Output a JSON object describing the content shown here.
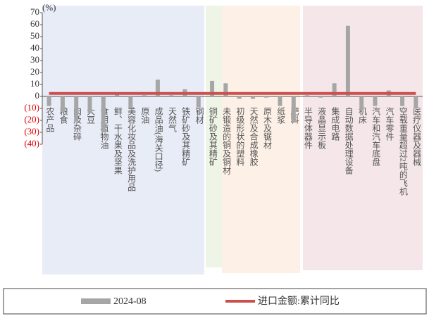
{
  "chart_data": {
    "type": "bar_line",
    "y_unit": "(%)",
    "categories": [
      "农产品",
      "粮食",
      "肉及杂碎",
      "大豆",
      "食用植物油",
      "鲜、干水果及坚果",
      "美容化妆品及洗护用品",
      "原油",
      "成品油(海关口径)",
      "天然气",
      "铁矿砂及其精矿",
      "钢材",
      "铜矿砂及其精矿",
      "未锻造的铜及铜材",
      "初级形状的塑料",
      "天然及合成橡胶",
      "原木及锯材",
      "纸浆",
      "肥料",
      "半导体器件",
      "液晶显示板",
      "集成电路",
      "自动数据处理设备",
      "机床",
      "汽车和汽车底盘",
      "汽车零件",
      "空载重量超过2吨的飞机",
      "医疗仪器及器械"
    ],
    "series": [
      {
        "name": "2024-08",
        "type": "bar",
        "color": "#a6a6a6",
        "values": [
          -8,
          -13,
          -21,
          -14,
          -30,
          2,
          -10,
          1,
          14,
          1,
          6,
          -9,
          13,
          11,
          -2,
          -2,
          -1,
          -8,
          -22,
          1,
          -1,
          11,
          59,
          -12,
          -8,
          5,
          -8,
          -10
        ]
      },
      {
        "name": "进口金额:累计同比",
        "type": "line",
        "color": "#c9504d",
        "values": [
          2.5,
          2.5,
          2.5,
          2.5,
          2.5,
          2.5,
          2.5,
          2.5,
          2.5,
          2.5,
          2.5,
          2.5,
          2.5,
          2.5,
          2.5,
          2.5,
          2.5,
          2.5,
          2.5,
          2.5,
          2.5,
          2.5,
          2.5,
          2.5,
          2.5,
          2.5,
          2.5,
          2.5
        ]
      }
    ],
    "ylim": [
      -40,
      70
    ],
    "yticks": [
      {
        "value": -40,
        "label": "(40)"
      },
      {
        "value": -30,
        "label": "(30)"
      },
      {
        "value": -20,
        "label": "(20)"
      },
      {
        "value": -10,
        "label": "(10)"
      },
      0,
      10,
      20,
      30,
      40,
      50,
      60,
      70
    ]
  }
}
